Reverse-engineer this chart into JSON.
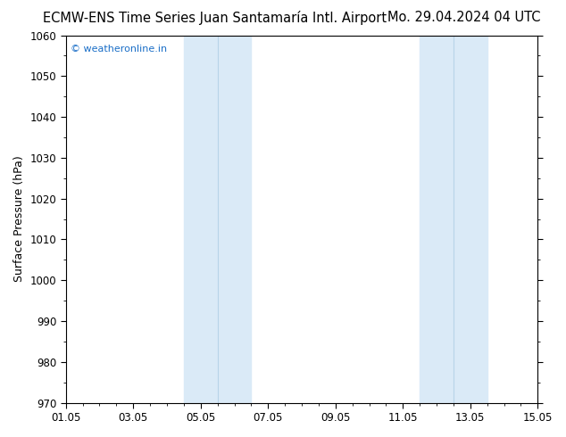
{
  "title_left": "ECMW-ENS Time Series Juan Santamaría Intl. Airport",
  "title_right": "Mo. 29.04.2024 04 UTC",
  "ylabel": "Surface Pressure (hPa)",
  "watermark": "© weatheronline.in",
  "watermark_color": "#1a6ec7",
  "ylim": [
    970,
    1060
  ],
  "yticks": [
    970,
    980,
    990,
    1000,
    1010,
    1020,
    1030,
    1040,
    1050,
    1060
  ],
  "xlim_start": 0.0,
  "xlim_end": 14.0,
  "xtick_positions": [
    0,
    2,
    4,
    6,
    8,
    10,
    12,
    14
  ],
  "xtick_labels": [
    "01.05",
    "03.05",
    "05.05",
    "07.05",
    "09.05",
    "11.05",
    "13.05",
    "15.05"
  ],
  "shaded_bands": [
    {
      "xmin": 3.5,
      "xmax": 4.5,
      "xmin2": 4.5,
      "xmax2": 5.5
    },
    {
      "xmin": 10.5,
      "xmax": 11.5,
      "xmin2": 11.5,
      "xmax2": 12.5
    }
  ],
  "band_color": "#daeaf7",
  "band_color2": "#cfe3f2",
  "band_divider_color": "#b8d4e8",
  "background_color": "#ffffff",
  "title_fontsize": 10.5,
  "tick_fontsize": 8.5,
  "ylabel_fontsize": 9,
  "x_minor_interval": 0.5
}
